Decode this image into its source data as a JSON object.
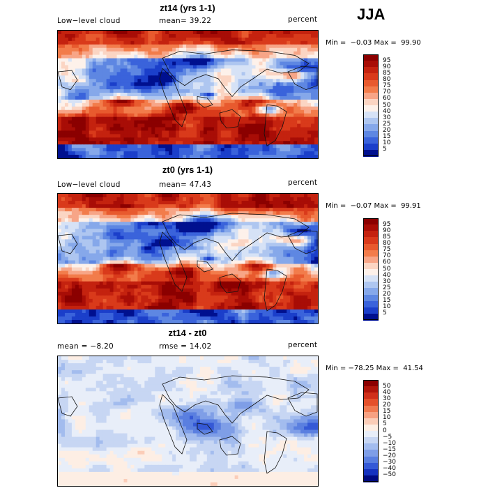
{
  "season": "JJA",
  "panels": [
    {
      "id": "zt14",
      "title": "zt14 (yrs 1-1)",
      "left_label": "Low−level cloud",
      "mid_label": "mean=  39.22",
      "right_label": "percent",
      "minmax": "Min =  −0.03 Max =  99.90",
      "colorbar": {
        "labels": [
          "95",
          "90",
          "85",
          "80",
          "75",
          "70",
          "60",
          "50",
          "40",
          "30",
          "25",
          "20",
          "15",
          "10",
          "5"
        ],
        "colors": [
          "#8b0000",
          "#a80d06",
          "#c4220f",
          "#d93a1b",
          "#e85a2e",
          "#f27c4b",
          "#f7a587",
          "#fbd5c3",
          "#fdf1ea",
          "#d6e2f6",
          "#aec6f0",
          "#86a8ea",
          "#5e87e2",
          "#3a63db",
          "#1b3fca",
          "#00108f"
        ]
      },
      "map_style": "cloud"
    },
    {
      "id": "zt0",
      "title": "zt0 (yrs 1-1)",
      "left_label": "Low−level cloud",
      "mid_label": "mean=  47.43",
      "right_label": "percent",
      "minmax": "Min =  −0.07 Max =  99.91",
      "colorbar": {
        "labels": [
          "95",
          "90",
          "85",
          "80",
          "75",
          "70",
          "60",
          "50",
          "40",
          "30",
          "25",
          "20",
          "15",
          "10",
          "5"
        ],
        "colors": [
          "#8b0000",
          "#a80d06",
          "#c4220f",
          "#d93a1b",
          "#e85a2e",
          "#f27c4b",
          "#f7a587",
          "#fbd5c3",
          "#fdf1ea",
          "#d6e2f6",
          "#aec6f0",
          "#86a8ea",
          "#5e87e2",
          "#3a63db",
          "#1b3fca",
          "#00108f"
        ]
      },
      "map_style": "cloud"
    },
    {
      "id": "diff",
      "title": "zt14 - zt0",
      "left_label": "mean =  −8.20",
      "mid_label": "rmse =  14.02",
      "right_label": "percent",
      "minmax": "Min = −78.25 Max =  41.54",
      "colorbar": {
        "labels": [
          "50",
          "40",
          "30",
          "20",
          "15",
          "10",
          "5",
          "0",
          "−5",
          "−10",
          "−15",
          "−20",
          "−30",
          "−40",
          "−50"
        ],
        "colors": [
          "#8b0000",
          "#b0150a",
          "#d0301a",
          "#e4502a",
          "#f07a50",
          "#f7a182",
          "#fbcdb8",
          "#fdeee4",
          "#e8eef9",
          "#c7d6f3",
          "#a3bcee",
          "#7f9ee7",
          "#5a7fe0",
          "#3559d6",
          "#1532bf",
          "#000a80"
        ]
      },
      "map_style": "diff"
    }
  ]
}
